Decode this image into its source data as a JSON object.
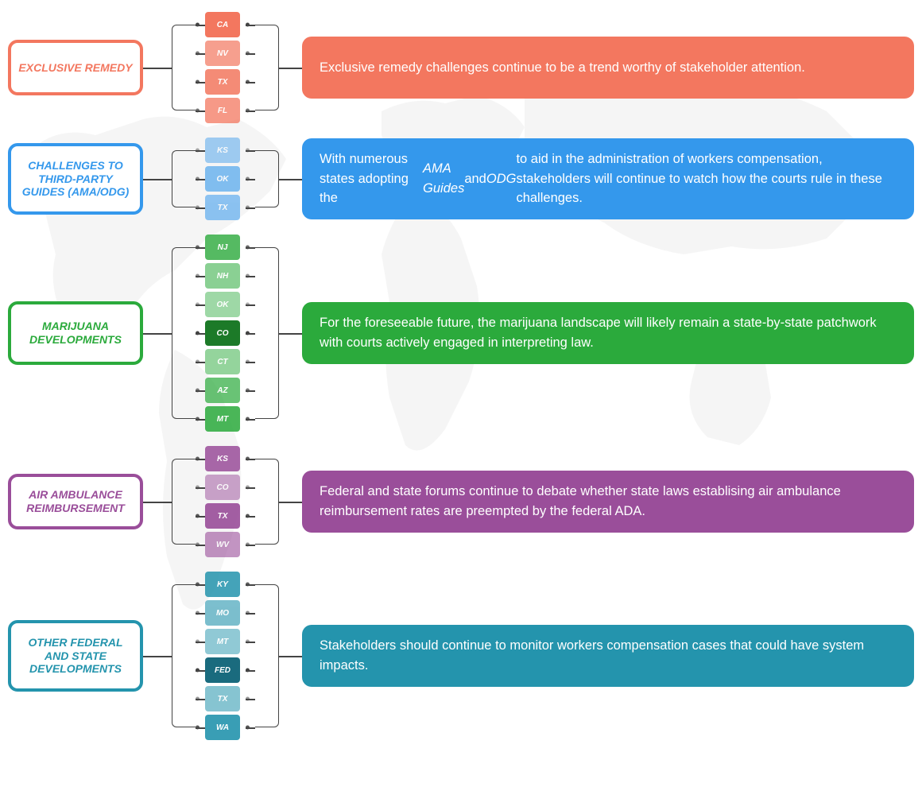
{
  "background_color": "#ffffff",
  "world_map_opacity": 0.08,
  "world_map_color": "#b0b0b0",
  "rows": [
    {
      "id": "exclusive-remedy",
      "label": "EXCLUSIVE REMEDY",
      "label_min_height": 70,
      "border_color": "#f3775f",
      "text_color": "#f3775f",
      "desc_bg": "#f3775f",
      "description": "Exclusive remedy challenges continue to be a trend worthy of stakeholder attention.",
      "states": [
        {
          "code": "CA",
          "bg": "#f3775f"
        },
        {
          "code": "NV",
          "bg": "#f3775f",
          "opacity": 0.7
        },
        {
          "code": "TX",
          "bg": "#f3775f",
          "opacity": 0.85
        },
        {
          "code": "FL",
          "bg": "#f3775f",
          "opacity": 0.75
        }
      ]
    },
    {
      "id": "third-party-guides",
      "label": "CHALLENGES TO THIRD-PARTY GUIDES (AMA/ODG)",
      "label_min_height": 90,
      "border_color": "#3498ec",
      "text_color": "#3498ec",
      "desc_bg": "#3498ec",
      "description": "With numerous states adopting the <i>AMA Guides</i> and <i>ODG</i> to aid in the administration of workers compensation, stakeholders will continue to watch how the courts rule in these challenges.",
      "states": [
        {
          "code": "KS",
          "bg": "#3498ec",
          "opacity": 0.45
        },
        {
          "code": "OK",
          "bg": "#3498ec",
          "opacity": 0.6
        },
        {
          "code": "TX",
          "bg": "#3498ec",
          "opacity": 0.55
        }
      ]
    },
    {
      "id": "marijuana",
      "label": "MARIJUANA DEVELOPMENTS",
      "label_min_height": 80,
      "border_color": "#2baa3c",
      "text_color": "#2baa3c",
      "desc_bg": "#2baa3c",
      "description": "For the foreseeable future, the marijuana landscape will likely remain a state-by-state patchwork with courts actively engaged in interpreting law.",
      "states": [
        {
          "code": "NJ",
          "bg": "#2baa3c",
          "opacity": 0.8
        },
        {
          "code": "NH",
          "bg": "#2baa3c",
          "opacity": 0.55
        },
        {
          "code": "OK",
          "bg": "#2baa3c",
          "opacity": 0.45
        },
        {
          "code": "CO",
          "bg": "#1c7a28"
        },
        {
          "code": "CT",
          "bg": "#2baa3c",
          "opacity": 0.5
        },
        {
          "code": "AZ",
          "bg": "#2baa3c",
          "opacity": 0.7
        },
        {
          "code": "MT",
          "bg": "#2baa3c",
          "opacity": 0.85
        }
      ]
    },
    {
      "id": "air-ambulance",
      "label": "AIR AMBULANCE REIMBURSEMENT",
      "label_min_height": 70,
      "border_color": "#9a4e9a",
      "text_color": "#9a4e9a",
      "desc_bg": "#9a4e9a",
      "description": "Federal and state forums continue to debate whether state laws establising air ambulance reimbursement rates are preempted by the federal ADA.",
      "states": [
        {
          "code": "KS",
          "bg": "#9a4e9a",
          "opacity": 0.85
        },
        {
          "code": "CO",
          "bg": "#9a4e9a",
          "opacity": 0.5
        },
        {
          "code": "TX",
          "bg": "#9a4e9a",
          "opacity": 0.9
        },
        {
          "code": "WV",
          "bg": "#9a4e9a",
          "opacity": 0.6
        }
      ]
    },
    {
      "id": "other-developments",
      "label": "OTHER FEDERAL AND STATE DEVELOPMENTS",
      "label_min_height": 90,
      "border_color": "#2494ad",
      "text_color": "#2494ad",
      "desc_bg": "#2494ad",
      "description": "Stakeholders should continue to monitor workers compensation cases that could have system impacts.",
      "states": [
        {
          "code": "KY",
          "bg": "#2494ad",
          "opacity": 0.85
        },
        {
          "code": "MO",
          "bg": "#2494ad",
          "opacity": 0.6
        },
        {
          "code": "MT",
          "bg": "#2494ad",
          "opacity": 0.5
        },
        {
          "code": "FED",
          "bg": "#1a6b7e"
        },
        {
          "code": "TX",
          "bg": "#2494ad",
          "opacity": 0.55
        },
        {
          "code": "WA",
          "bg": "#2494ad",
          "opacity": 0.9
        }
      ]
    }
  ],
  "layout": {
    "label_width": 170,
    "states_col_width": 200,
    "state_item_width": 44,
    "state_item_height": 32,
    "state_gap": 4,
    "row_margin_bottom": 18,
    "font_label": 14,
    "font_desc": 16.5,
    "font_state": 10
  }
}
